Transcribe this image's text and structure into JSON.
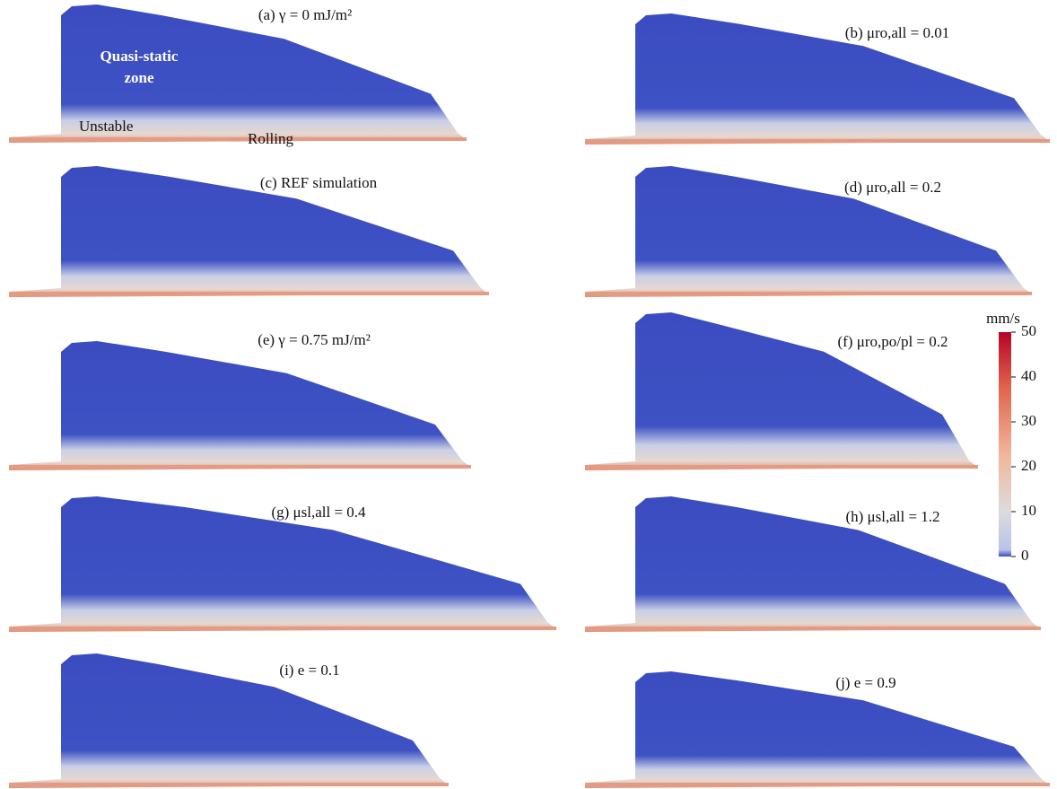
{
  "panels": [
    {
      "label": "(a) γ = 0 mJ/m²"
    },
    {
      "label": "(b) μro,all = 0.01"
    },
    {
      "label": "(c) REF simulation"
    },
    {
      "label": "(d) μro,all = 0.2"
    },
    {
      "label": "(e) γ = 0.75 mJ/m²"
    },
    {
      "label": "(f) μro,po/pl = 0.2"
    },
    {
      "label": "(g) μsl,all = 0.4"
    },
    {
      "label": "(h) μsl,all = 1.2"
    },
    {
      "label": "(i) e = 0.1"
    },
    {
      "label": "(j) e = 0.9"
    }
  ],
  "annotations": {
    "zone_line1": "Quasi-static",
    "zone_line2": "zone",
    "unstable": "Unstable",
    "rolling": "Rolling"
  },
  "colorbar": {
    "unit": "mm/s",
    "lim": [
      0,
      50
    ],
    "ticks": [
      0,
      10,
      20,
      30,
      40,
      50
    ]
  }
}
